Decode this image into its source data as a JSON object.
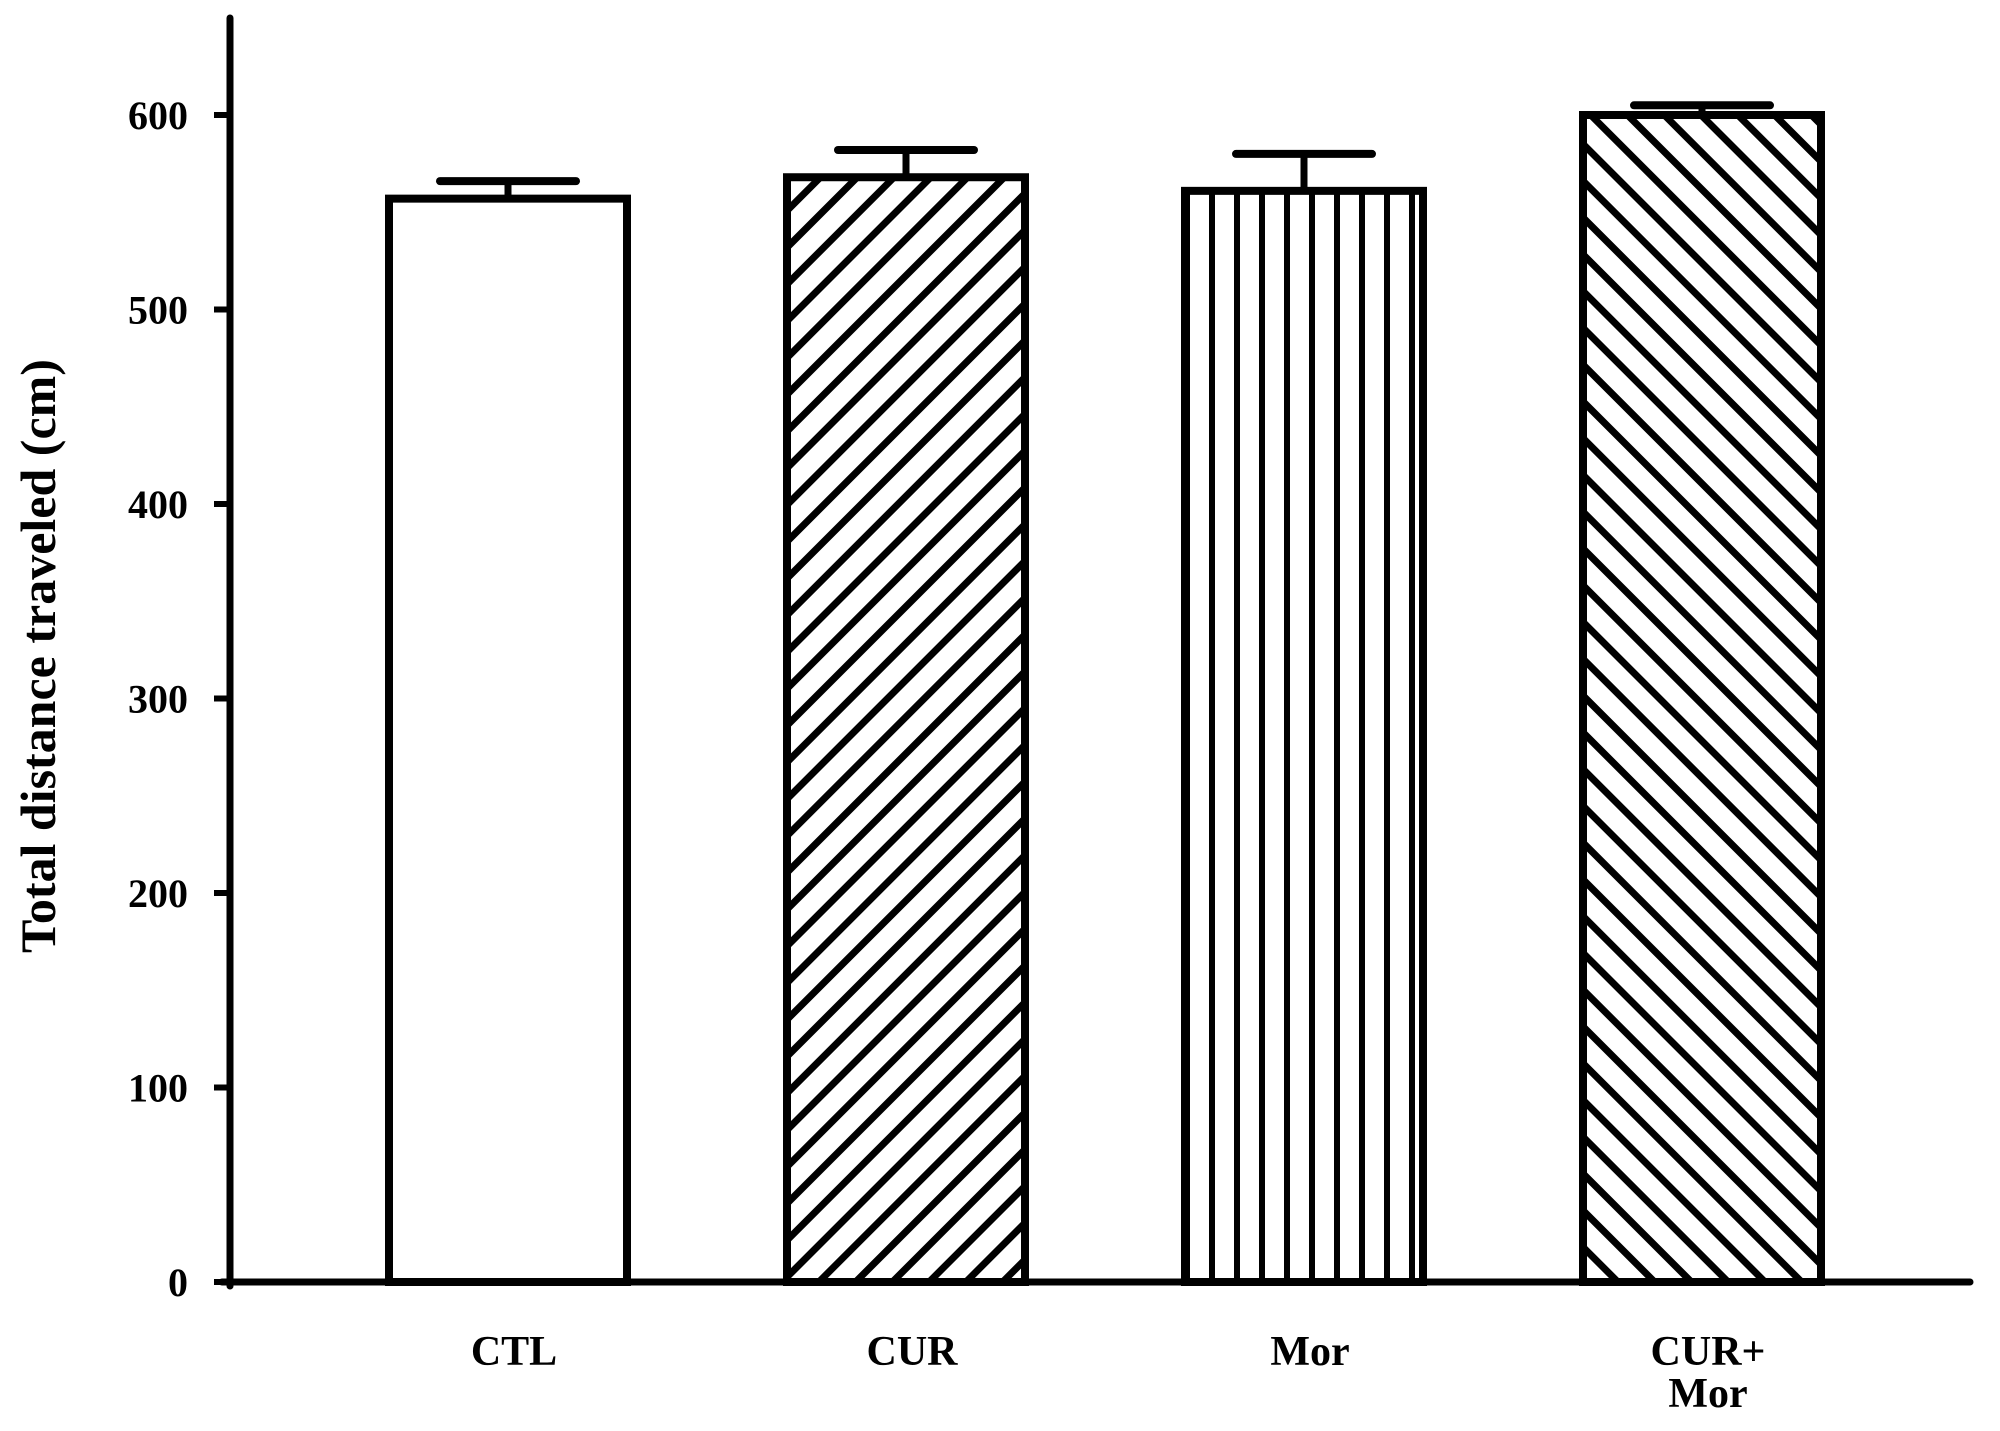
{
  "chart_data": {
    "type": "bar",
    "title": "",
    "xlabel": "",
    "ylabel": "Total distance traveled (cm)",
    "ylim": [
      0,
      650
    ],
    "yticks": [
      0,
      100,
      200,
      300,
      400,
      500,
      600
    ],
    "grid": false,
    "legend": "none",
    "categories": [
      [
        "CTL"
      ],
      [
        "CUR"
      ],
      [
        "Mor"
      ],
      [
        "CUR+",
        "Mor"
      ]
    ],
    "series": [
      {
        "values": [
          557,
          568,
          561,
          600
        ],
        "error": [
          9,
          14,
          19,
          5
        ],
        "patterns": [
          "none",
          "diagonal-up",
          "vertical",
          "diagonal-down"
        ]
      }
    ],
    "colors": {
      "stroke": "#000000",
      "fill": "#ffffff"
    }
  }
}
